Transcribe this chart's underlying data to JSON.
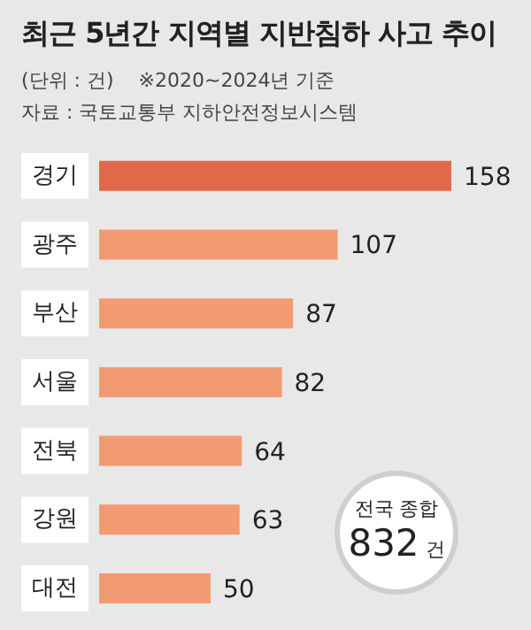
{
  "chart_data": {
    "type": "bar",
    "orientation": "horizontal",
    "title": "최근 5년간 지역별 지반침하 사고 추이",
    "subtitle": "(단위 : 건)",
    "categories": [
      "경기",
      "광주",
      "부산",
      "서울",
      "전북",
      "강원",
      "대전"
    ],
    "values": [
      158,
      107,
      87,
      82,
      64,
      63,
      50
    ],
    "colors": [
      "#e0694a",
      "#f29b73",
      "#f29b73",
      "#f29b73",
      "#f29b73",
      "#f29b73",
      "#f29b73"
    ],
    "data_labels": true,
    "annotations": [
      "※2020~2024년 기준",
      "자료 : 국토교통부 지하안전정보시스템",
      "전국 종합",
      "832 건"
    ]
  }
}
